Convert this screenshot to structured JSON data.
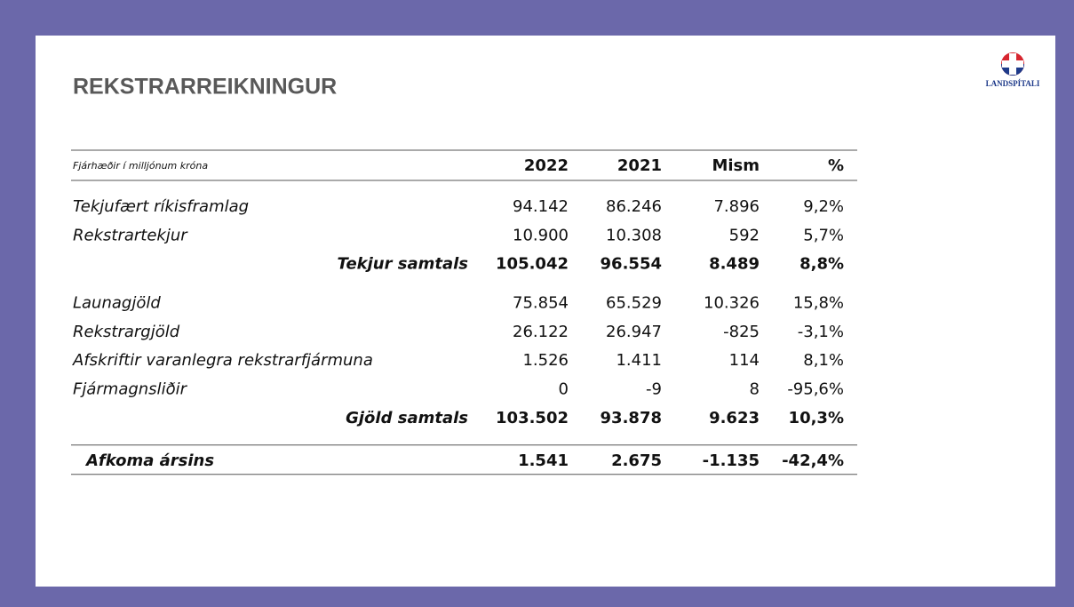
{
  "title": "REKSTRARREIKNINGUR",
  "logo": {
    "text": "LANDSPÍTALI"
  },
  "table": {
    "caption": "Fjárhæðir í milljónum króna",
    "columns": [
      "2022",
      "2021",
      "Mism",
      "%"
    ],
    "groups": [
      {
        "rows": [
          {
            "label": "Tekjufært ríkisframlag",
            "values": [
              "94.142",
              "86.246",
              "7.896",
              "9,2%"
            ]
          },
          {
            "label": "Rekstrartekjur",
            "values": [
              "10.900",
              "10.308",
              "592",
              "5,7%"
            ]
          }
        ],
        "total": {
          "label": "Tekjur samtals",
          "values": [
            "105.042",
            "96.554",
            "8.489",
            "8,8%"
          ]
        }
      },
      {
        "rows": [
          {
            "label": "Launagjöld",
            "values": [
              "75.854",
              "65.529",
              "10.326",
              "15,8%"
            ]
          },
          {
            "label": "Rekstrargjöld",
            "values": [
              "26.122",
              "26.947",
              "-825",
              "-3,1%"
            ]
          },
          {
            "label": "Afskriftir varanlegra rekstrarfjármuna",
            "values": [
              "1.526",
              "1.411",
              "114",
              "8,1%"
            ]
          },
          {
            "label": "Fjármagnsliðir",
            "values": [
              "0",
              "-9",
              "8",
              "-95,6%"
            ]
          }
        ],
        "total": {
          "label": "Gjöld samtals",
          "values": [
            "103.502",
            "93.878",
            "9.623",
            "10,3%"
          ]
        }
      }
    ],
    "result": {
      "label": "Afkoma ársins",
      "values": [
        "1.541",
        "2.675",
        "-1.135",
        "-42,4%"
      ]
    }
  }
}
